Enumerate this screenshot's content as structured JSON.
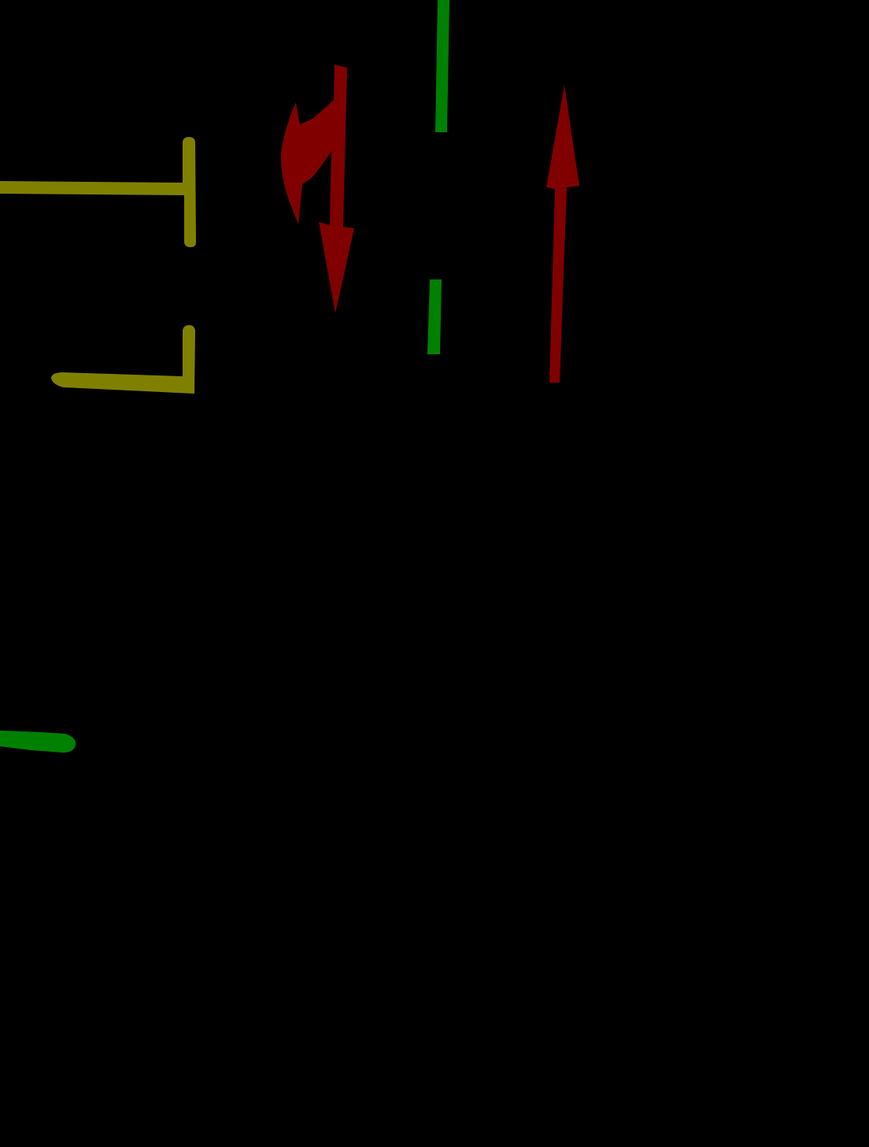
{
  "background": "#000000",
  "colors": {
    "lane_marking": "#008000",
    "stop_line": "#808000",
    "direction_arrow": "#800000"
  },
  "elements": [
    {
      "name": "lane-divider-dash-upper",
      "kind": "lane-marking"
    },
    {
      "name": "lane-divider-dash-lower",
      "kind": "lane-marking"
    },
    {
      "name": "lane-divider-dash-left",
      "kind": "lane-marking"
    },
    {
      "name": "stop-line-upper",
      "kind": "stop-line"
    },
    {
      "name": "stop-line-lower",
      "kind": "stop-line"
    },
    {
      "name": "left-turn-and-straight-arrow",
      "kind": "direction-arrow"
    },
    {
      "name": "straight-arrow",
      "kind": "direction-arrow"
    }
  ]
}
